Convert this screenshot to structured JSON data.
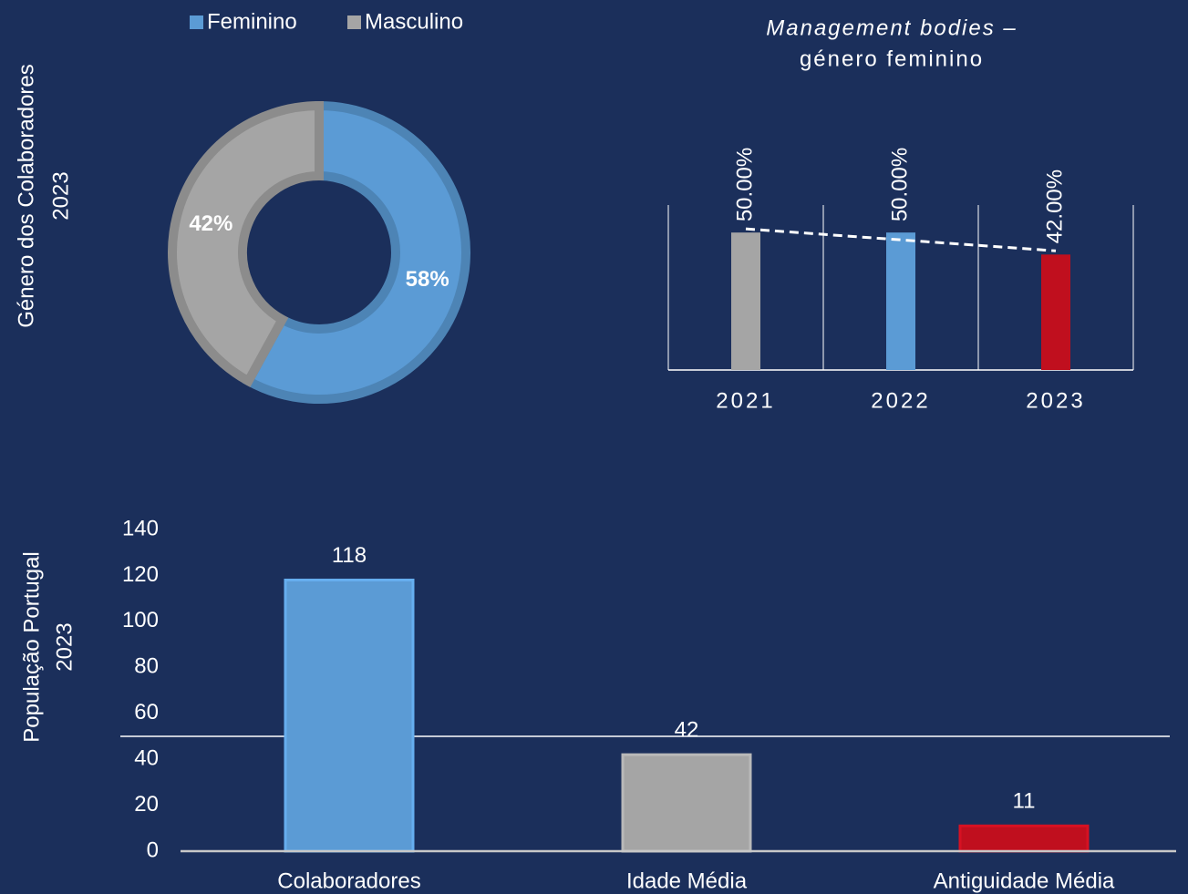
{
  "chart_data": [
    {
      "type": "donut",
      "label_lines": [
        "Género dos Colaboradores",
        "2023"
      ],
      "categories": [
        "Feminino",
        "Masculino"
      ],
      "values": [
        58,
        42
      ],
      "value_labels": [
        "58%",
        "42%"
      ],
      "colors": [
        "#5b9bd5",
        "#a5a5a5"
      ],
      "legend": "top"
    },
    {
      "type": "bar",
      "title_lines": [
        "Management bodies –",
        "género feminino"
      ],
      "categories": [
        "2021",
        "2022",
        "2023"
      ],
      "values": [
        50,
        50,
        42
      ],
      "value_labels": [
        "50.00%",
        "50.00%",
        "42.00%"
      ],
      "colors": [
        "#a5a5a5",
        "#5b9bd5",
        "#c00f1e"
      ],
      "ylim": [
        0,
        60
      ],
      "trendline": true
    },
    {
      "type": "bar",
      "label_lines": [
        "População  Portugal",
        "2023"
      ],
      "categories": [
        "Colaboradores",
        "Idade Média",
        "Antiguidade Média"
      ],
      "values": [
        118,
        42,
        11
      ],
      "colors": [
        "#5b9bd5",
        "#a5a5a5",
        "#c00f1e"
      ],
      "ylim": [
        0,
        140
      ],
      "yticks": [
        0,
        20,
        40,
        60,
        80,
        100,
        120,
        140
      ]
    }
  ]
}
